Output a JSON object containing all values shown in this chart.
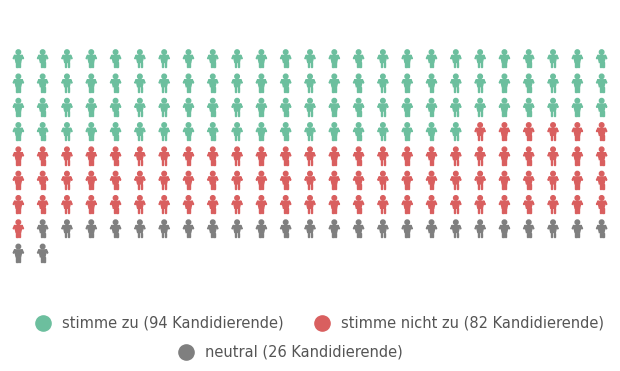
{
  "ja_count": 94,
  "nein_count": 82,
  "neutral_count": 26,
  "total": 202,
  "cols": 25,
  "color_ja": "#6cbf9e",
  "color_nein": "#d95f5f",
  "color_neutral": "#7f7f7f",
  "background_color": "#ffffff",
  "legend_text_ja": "stimme zu (94 Kandidierende)",
  "legend_text_nein": "stimme nicht zu (82 Kandidierende)",
  "legend_text_neutral": "neutral (26 Kandidierende)",
  "text_color": "#555555",
  "legend_fontsize": 10.5,
  "icon_fontsize": 22,
  "figsize": [
    6.2,
    3.71
  ],
  "dpi": 100
}
